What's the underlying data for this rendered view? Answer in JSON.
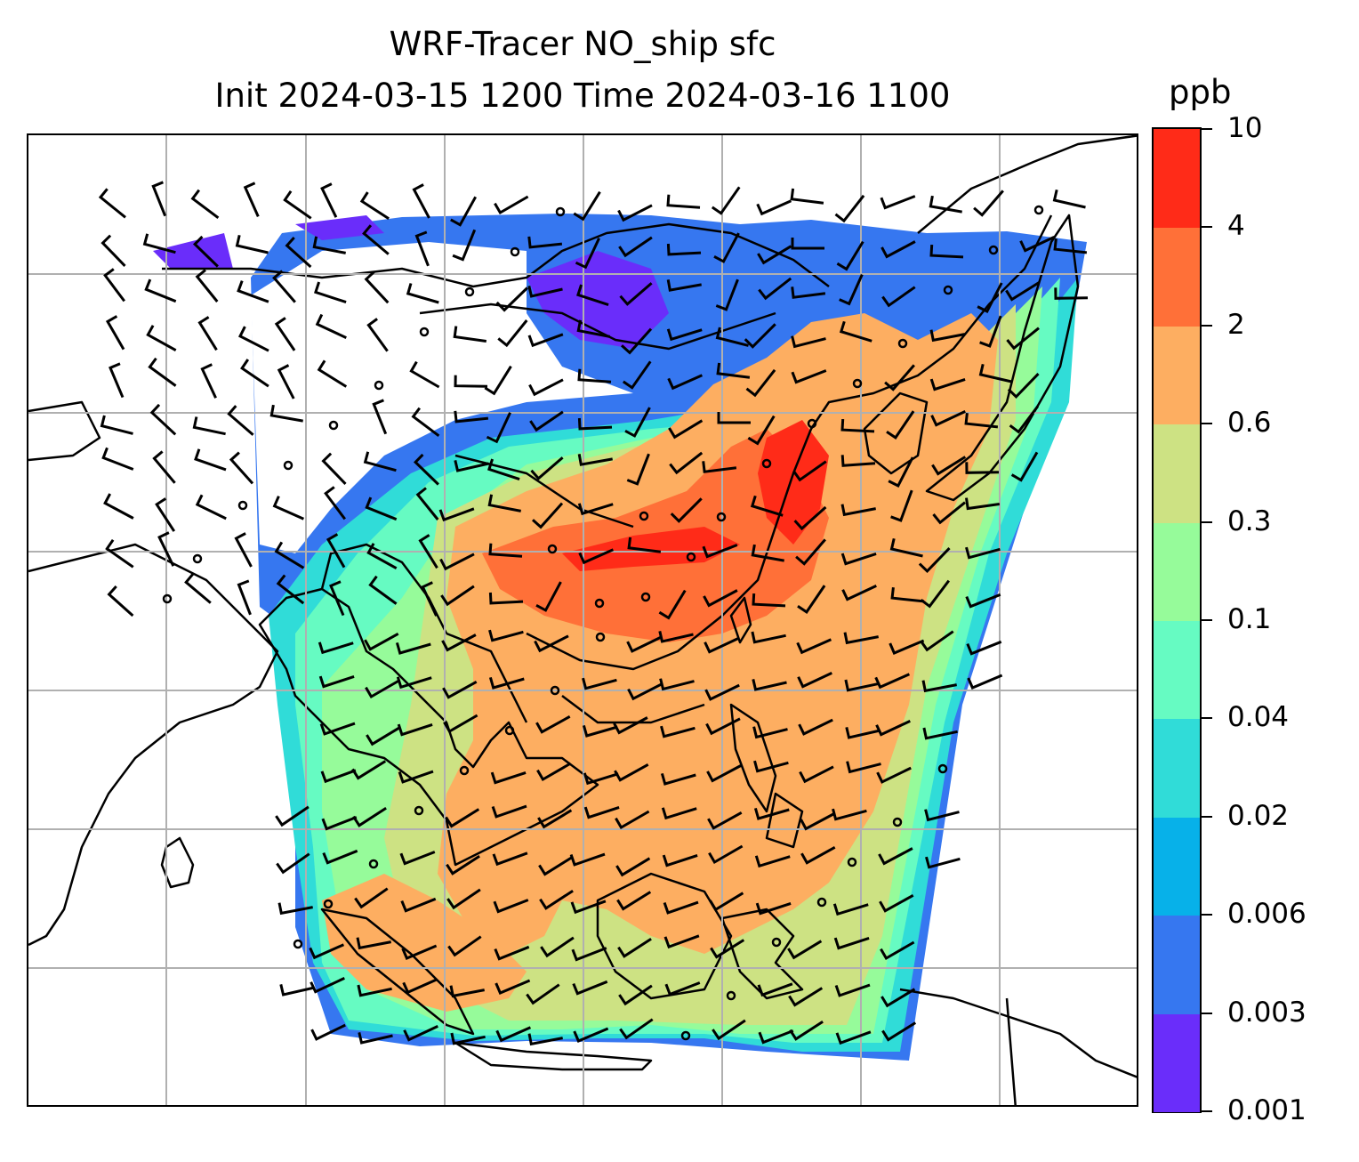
{
  "title": {
    "line1": "WRF-Tracer NO_ship sfc",
    "line2": "Init 2024-03-15 1200 Time 2024-03-16 1100"
  },
  "colorbar": {
    "unit": "ppb",
    "ticks": [
      "0.001",
      "0.003",
      "0.006",
      "0.02",
      "0.04",
      "0.1",
      "0.3",
      "0.6",
      "2",
      "4",
      "10"
    ],
    "colors": [
      "#6a2dfa",
      "#3677f0",
      "#07b1e9",
      "#30dcd8",
      "#66fbc2",
      "#96fb9a",
      "#cde283",
      "#fdae61",
      "#ff7038",
      "#ff2b18"
    ]
  },
  "map": {
    "gridlines": true,
    "grid_color": "#b0b0b0",
    "coastline_color": "#000000",
    "wind_barbs_color": "#000000",
    "calm_marker": "circle"
  }
}
